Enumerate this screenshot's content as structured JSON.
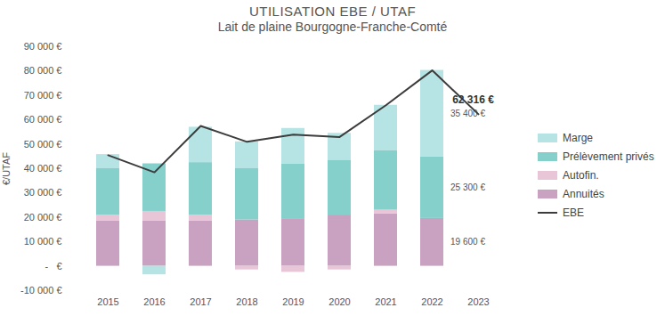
{
  "chart_data": {
    "type": "bar",
    "title": "UTILISATION EBE / UTAF",
    "subtitle": "Lait de plaine Bourgogne-Franche-Comté",
    "y_label": "€/UTAF",
    "stacked": true,
    "grid": false,
    "legend": "right",
    "data_labels": true,
    "categories": [
      "2015",
      "2016",
      "2017",
      "2018",
      "2019",
      "2020",
      "2021",
      "2022",
      "2023"
    ],
    "ylim": [
      -10000,
      90000
    ],
    "yticks": [
      {
        "value": -10000,
        "label": "-10 000 €"
      },
      {
        "value": 0,
        "label": "-   €"
      },
      {
        "value": 10000,
        "label": "10 000 €"
      },
      {
        "value": 20000,
        "label": "20 000 €"
      },
      {
        "value": 30000,
        "label": "30 000 €"
      },
      {
        "value": 40000,
        "label": "40 000 €"
      },
      {
        "value": 50000,
        "label": "50 000 €"
      },
      {
        "value": 60000,
        "label": "60 000 €"
      },
      {
        "value": 70000,
        "label": "70 000 €"
      },
      {
        "value": 80000,
        "label": "80 000 €"
      },
      {
        "value": 90000,
        "label": "90 000 €"
      }
    ],
    "series": [
      {
        "name": "Annuités",
        "type": "bar",
        "color": "#c8a2c0",
        "values": [
          18500,
          18500,
          18500,
          19000,
          19500,
          21000,
          21500,
          19600,
          null
        ],
        "value_labels": [
          null,
          null,
          null,
          null,
          null,
          null,
          null,
          "19 600 €",
          null
        ]
      },
      {
        "name": "Autofin.",
        "type": "bar",
        "color": "#e8c6d8",
        "values": [
          2500,
          4000,
          2500,
          -1500,
          -2500,
          -1500,
          1500,
          0,
          null
        ]
      },
      {
        "name": "Prélèvement privés",
        "type": "bar",
        "color": "#86d0cc",
        "values": [
          19000,
          19500,
          21500,
          21000,
          22500,
          22500,
          24500,
          25300,
          null
        ],
        "value_labels": [
          null,
          null,
          null,
          null,
          null,
          null,
          null,
          "25 300 €",
          null
        ]
      },
      {
        "name": "Marge",
        "type": "bar",
        "color": "#b6e3e3",
        "values": [
          5800,
          -3500,
          14500,
          11000,
          14500,
          11000,
          18500,
          35400,
          null
        ],
        "value_labels": [
          null,
          null,
          null,
          null,
          null,
          null,
          null,
          "35 400 €",
          null
        ]
      },
      {
        "name": "EBE",
        "type": "line",
        "color": "#3c3c3c",
        "values": [
          45500,
          38500,
          57500,
          51000,
          54000,
          53000,
          66000,
          80300,
          62316
        ],
        "value_labels": [
          null,
          null,
          null,
          null,
          null,
          null,
          null,
          null,
          "62 316 €"
        ]
      }
    ]
  }
}
